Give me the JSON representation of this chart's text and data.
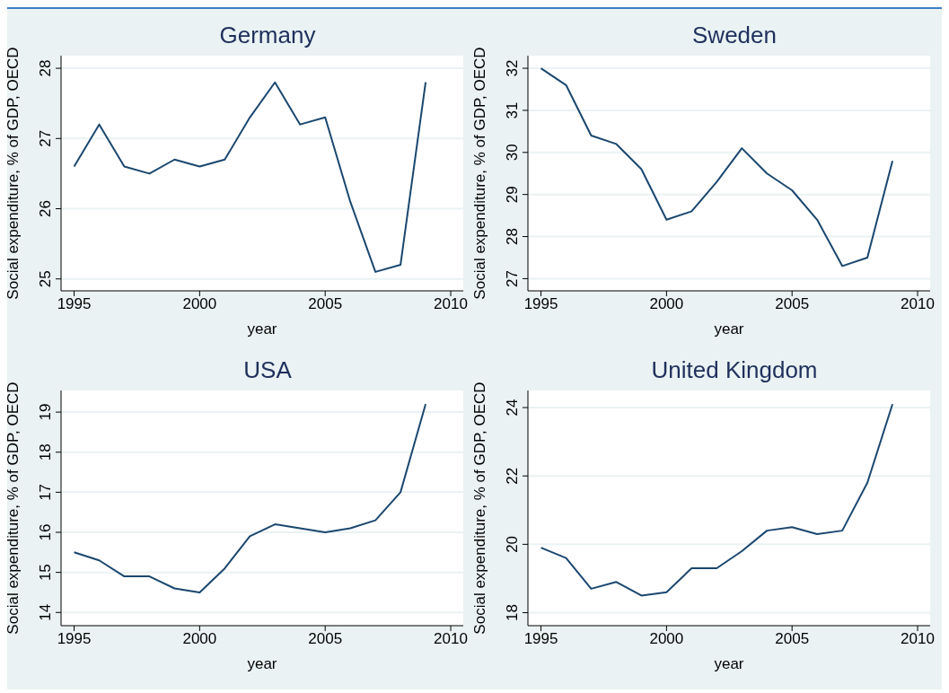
{
  "chart_data": [
    {
      "type": "line",
      "title": "Germany",
      "xlabel": "year",
      "ylabel": "Social expenditure, % of GDP, OECD",
      "x": [
        1995,
        1996,
        1997,
        1998,
        1999,
        2000,
        2001,
        2002,
        2003,
        2004,
        2005,
        2006,
        2007,
        2008,
        2009
      ],
      "values": [
        26.6,
        27.2,
        26.6,
        26.5,
        26.7,
        26.6,
        26.7,
        27.3,
        27.8,
        27.2,
        27.3,
        26.1,
        25.1,
        25.2,
        27.8
      ],
      "color": "#1a476f",
      "xlim": [
        1994.48,
        2010.5
      ],
      "xticks": [
        1995,
        2000,
        2005,
        2010
      ],
      "ylim": [
        24.83,
        28.18
      ],
      "yticks": [
        25,
        26,
        27,
        28
      ],
      "grid": "y"
    },
    {
      "type": "line",
      "title": "Sweden",
      "xlabel": "year",
      "ylabel": "Social expenditure, % of GDP, OECD",
      "x": [
        1995,
        1996,
        1997,
        1998,
        1999,
        2000,
        2001,
        2002,
        2003,
        2004,
        2005,
        2006,
        2007,
        2008,
        2009
      ],
      "values": [
        32.0,
        31.6,
        30.4,
        30.2,
        29.6,
        28.4,
        28.6,
        29.3,
        30.1,
        29.5,
        29.1,
        28.4,
        27.3,
        27.5,
        29.8
      ],
      "color": "#1a476f",
      "xlim": [
        1994.48,
        2010.5
      ],
      "xticks": [
        1995,
        2000,
        2005,
        2010
      ],
      "ylim": [
        26.71,
        32.3
      ],
      "yticks": [
        27,
        28,
        29,
        30,
        31,
        32
      ],
      "grid": "y"
    },
    {
      "type": "line",
      "title": "USA",
      "xlabel": "year",
      "ylabel": "Social expenditure, % of GDP, OECD",
      "x": [
        1995,
        1996,
        1997,
        1998,
        1999,
        2000,
        2001,
        2002,
        2003,
        2004,
        2005,
        2006,
        2007,
        2008,
        2009
      ],
      "values": [
        15.5,
        15.3,
        14.9,
        14.9,
        14.6,
        14.5,
        15.1,
        15.9,
        16.2,
        16.1,
        16.0,
        16.1,
        16.3,
        17.0,
        19.2
      ],
      "color": "#1a476f",
      "xlim": [
        1994.48,
        2010.5
      ],
      "xticks": [
        1995,
        2000,
        2005,
        2010
      ],
      "ylim": [
        13.67,
        19.54
      ],
      "yticks": [
        14,
        15,
        16,
        17,
        18,
        19
      ],
      "grid": "y"
    },
    {
      "type": "line",
      "title": "United Kingdom",
      "xlabel": "year",
      "ylabel": "Social expenditure, % of GDP, OECD",
      "x": [
        1995,
        1996,
        1997,
        1998,
        1999,
        2000,
        2001,
        2002,
        2003,
        2004,
        2005,
        2006,
        2007,
        2008,
        2009
      ],
      "values": [
        19.9,
        19.6,
        18.7,
        18.9,
        18.5,
        18.6,
        19.3,
        19.3,
        19.8,
        20.4,
        20.5,
        20.3,
        20.4,
        21.8,
        24.1
      ],
      "color": "#1a476f",
      "xlim": [
        1994.48,
        2010.5
      ],
      "xticks": [
        1995,
        2000,
        2005,
        2010
      ],
      "ylim": [
        17.62,
        24.5
      ],
      "yticks": [
        18,
        20,
        22,
        24
      ],
      "grid": "y"
    }
  ]
}
